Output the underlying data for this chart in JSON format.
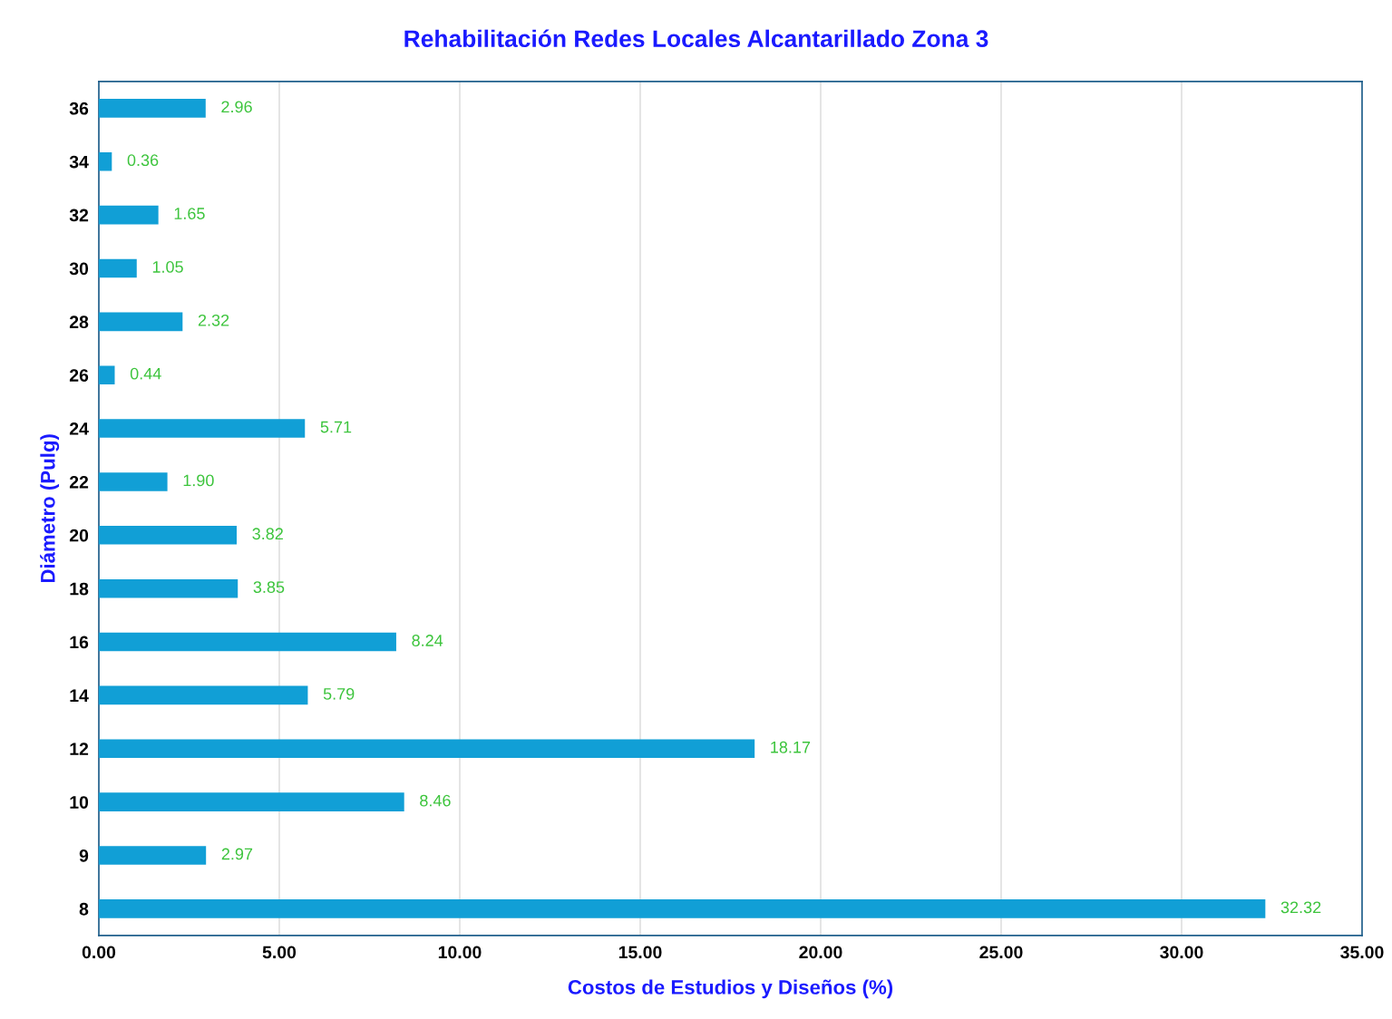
{
  "chart_data": {
    "type": "bar",
    "orientation": "horizontal",
    "title": "Rehabilitación Redes Locales Alcantarillado Zona 3",
    "xlabel": "Costos de Estudios y Diseños (%)",
    "ylabel": "Diámetro (Pulg)",
    "categories": [
      "36",
      "34",
      "32",
      "30",
      "28",
      "26",
      "24",
      "22",
      "20",
      "18",
      "16",
      "14",
      "12",
      "10",
      "9",
      "8"
    ],
    "values": [
      2.96,
      0.36,
      1.65,
      1.05,
      2.32,
      0.44,
      5.71,
      1.9,
      3.82,
      3.85,
      8.24,
      5.79,
      18.17,
      8.46,
      2.97,
      32.32
    ],
    "value_labels": [
      "2.96",
      "0.36",
      "1.65",
      "1.05",
      "2.32",
      "0.44",
      "5.71",
      "1.90",
      "3.82",
      "3.85",
      "8.24",
      "5.79",
      "18.17",
      "8.46",
      "2.97",
      "32.32"
    ],
    "color": "#119fd6",
    "xlim": [
      0,
      35
    ],
    "xticks": [
      {
        "value": 0,
        "label": "0.00"
      },
      {
        "value": 5,
        "label": "5.00"
      },
      {
        "value": 10,
        "label": "10.00"
      },
      {
        "value": 15,
        "label": "15.00"
      },
      {
        "value": 20,
        "label": "20.00"
      },
      {
        "value": 25,
        "label": "25.00"
      },
      {
        "value": 30,
        "label": "30.00"
      },
      {
        "value": 35,
        "label": "35.00"
      }
    ],
    "grid": "x",
    "legend": false
  }
}
